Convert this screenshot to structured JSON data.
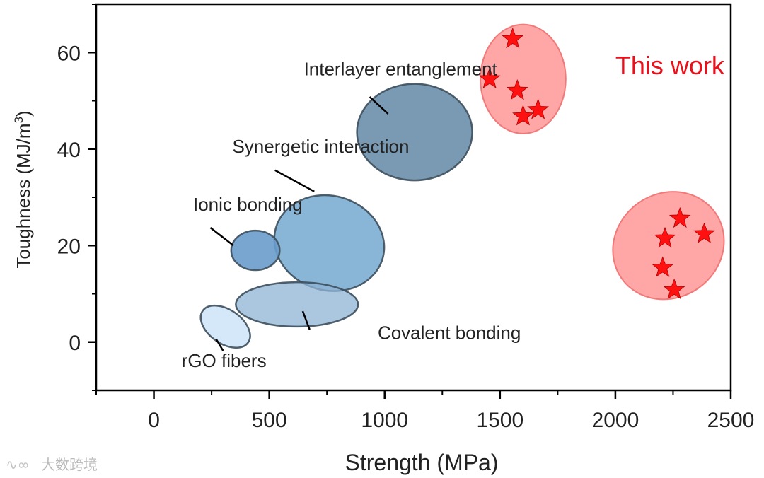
{
  "chart_data": {
    "type": "scatter",
    "title": "",
    "xlabel": "Strength (MPa)",
    "ylabel_main": "Toughness (MJ/m",
    "ylabel_sup": "3",
    "ylabel_close": ")",
    "xlim": [
      -250,
      2500
    ],
    "ylim": [
      -10,
      70
    ],
    "xticks": [
      0,
      500,
      1000,
      1500,
      2000,
      2500
    ],
    "yticks": [
      0,
      20,
      40,
      60
    ],
    "regions": [
      {
        "name": "Interlayer entanglement",
        "cx": 1130,
        "cy": 43.5,
        "rx": 250,
        "ry": 10,
        "rotation": 0,
        "fill": "#6a8faa",
        "opacity": 0.9
      },
      {
        "name": "Synergetic interaction",
        "cx": 760,
        "cy": 20.5,
        "rx": 205,
        "ry": 11.5,
        "rotation": -74,
        "fill": "#74a8d0",
        "opacity": 0.85
      },
      {
        "name": "Ionic bonding",
        "cx": 440,
        "cy": 19,
        "rx": 105,
        "ry": 4.1,
        "rotation": 0,
        "fill": "#6a9ccc",
        "opacity": 0.9
      },
      {
        "name": "Covalent bonding",
        "cx": 620,
        "cy": 7.8,
        "rx": 265,
        "ry": 4.6,
        "rotation": 0,
        "fill": "#8fb4d6",
        "opacity": 0.75
      },
      {
        "name": "rGO fibers",
        "cx": 310,
        "cy": 3.2,
        "rx": 120,
        "ry": 3.5,
        "rotation": 35,
        "fill": "#cfe6fa",
        "opacity": 0.9
      },
      {
        "name": "This work (upper)",
        "cx": 1600,
        "cy": 54.5,
        "rx": 185,
        "ry": 11.3,
        "rotation": 0,
        "fill": "#ff6b6b",
        "opacity": 0.6
      },
      {
        "name": "This work (lower)",
        "cx": 2230,
        "cy": 20,
        "rx": 248,
        "ry": 10.8,
        "rotation": -35,
        "fill": "#ff6b6b",
        "opacity": 0.6
      }
    ],
    "series": [
      {
        "name": "This work",
        "marker": "star",
        "color": "#ff1111",
        "points": [
          {
            "x": 1555,
            "y": 62.8
          },
          {
            "x": 1455,
            "y": 54.5
          },
          {
            "x": 1575,
            "y": 52.1
          },
          {
            "x": 1665,
            "y": 48.1
          },
          {
            "x": 1600,
            "y": 46.8
          },
          {
            "x": 2280,
            "y": 25.6
          },
          {
            "x": 2385,
            "y": 22.4
          },
          {
            "x": 2215,
            "y": 21.5
          },
          {
            "x": 2205,
            "y": 15.4
          },
          {
            "x": 2255,
            "y": 10.8
          }
        ]
      }
    ],
    "annotations": [
      {
        "name": "interlayer",
        "text": "Interlayer entanglement",
        "x": 650,
        "y": 55.3,
        "line": [
          [
            935,
            50.8
          ],
          [
            1015,
            47.3
          ]
        ]
      },
      {
        "name": "synergetic",
        "text": "Synergetic interaction",
        "x": 340,
        "y": 39.2,
        "line": [
          [
            525,
            35.6
          ],
          [
            695,
            31.2
          ]
        ]
      },
      {
        "name": "ionic",
        "text": "Ionic bonding",
        "x": 170,
        "y": 27.2,
        "line": [
          [
            245,
            23.7
          ],
          [
            345,
            20.0
          ]
        ]
      },
      {
        "name": "covalent",
        "text": "Covalent bonding",
        "x": 970,
        "y": 0.6,
        "line": [
          [
            675,
            2.6
          ],
          [
            645,
            6.4
          ]
        ]
      },
      {
        "name": "rgo",
        "text": "rGO fibers",
        "x": 120,
        "y": -5.2,
        "line": [
          [
            300,
            -1.8
          ],
          [
            270,
            0.6
          ]
        ]
      },
      {
        "name": "this-work",
        "text": "This work",
        "x": 2000,
        "y": 55.5,
        "color": "#e8101a"
      }
    ]
  },
  "watermark": "大数跨境"
}
